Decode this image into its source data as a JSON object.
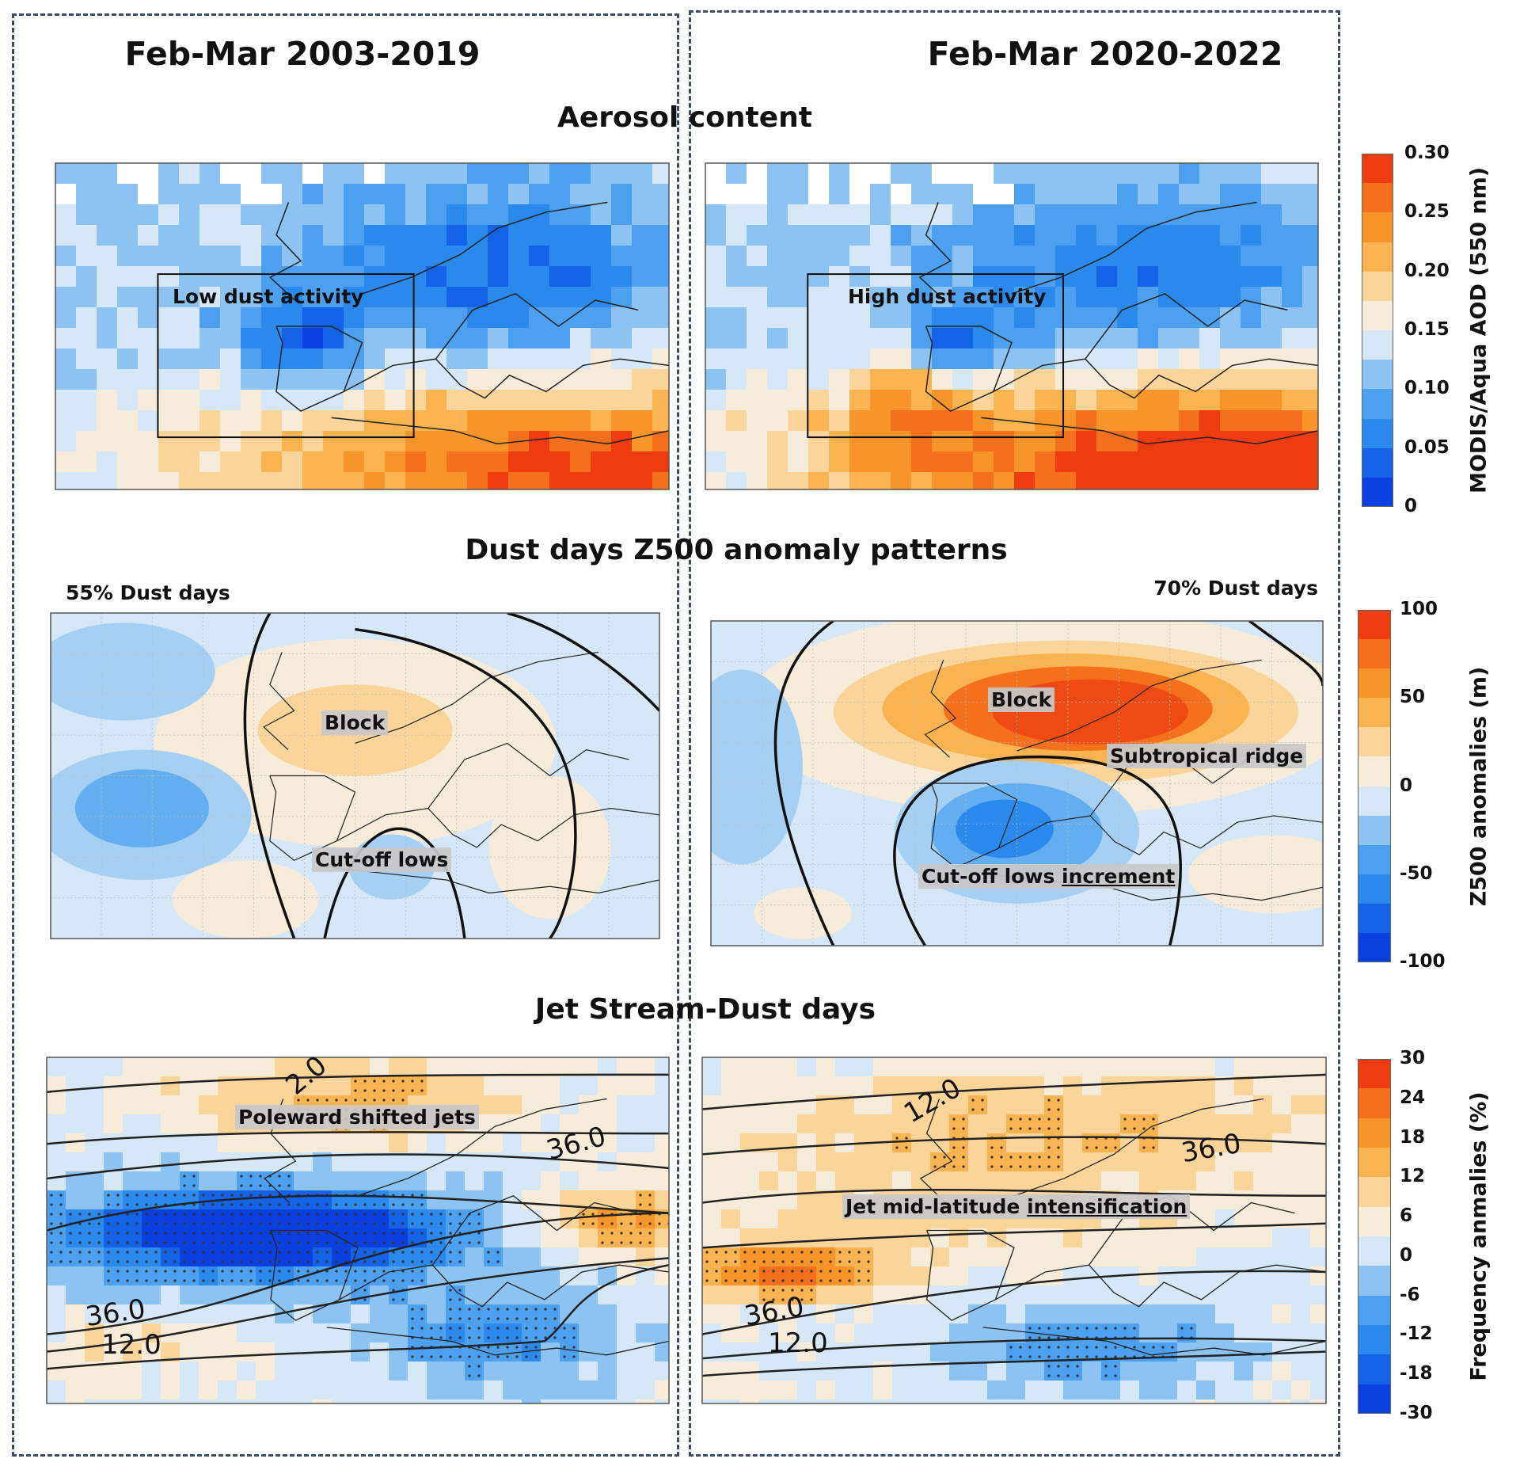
{
  "columns": {
    "left_title": "Feb-Mar 2003-2019",
    "right_title": "Feb-Mar 2020-2022"
  },
  "rows": {
    "aerosol": {
      "title": "Aerosol content",
      "left_label": "Low dust activity",
      "right_label": "High dust activity",
      "colorbar": {
        "title": "MODIS/Aqua AOD (550 nm)",
        "ticks": [
          "0.30",
          "0.25",
          "0.20",
          "0.15",
          "0.10",
          "0.05",
          "0"
        ],
        "colors": [
          "#ee3b10",
          "#f4701c",
          "#f7952a",
          "#f9b350",
          "#fbd49a",
          "#f7ebd9",
          "#d6e8f7",
          "#8cc3f2",
          "#4da0f0",
          "#2b88ec",
          "#1463e6",
          "#0a3fe0"
        ]
      }
    },
    "z500": {
      "title": "Dust days Z500 anomaly patterns",
      "left_pct": "55% Dust days",
      "right_pct": "70% Dust days",
      "left_labels": {
        "block": "Block",
        "cutoff": "Cut-off lows"
      },
      "right_labels": {
        "block": "Block",
        "ridge": "Subtropical ridge",
        "cutoff_a": "Cut-off lows ",
        "cutoff_b": "increment"
      },
      "colorbar": {
        "title": "Z500 anomalies (m)",
        "ticks": [
          "100",
          "50",
          "0",
          "-50",
          "-100"
        ],
        "colors": [
          "#ee3b10",
          "#f4701c",
          "#f7952a",
          "#f9b350",
          "#fbd49a",
          "#f7ebd9",
          "#d6e8f7",
          "#8cc3f2",
          "#4da0f0",
          "#2b88ec",
          "#1463e6",
          "#0a3fe0"
        ]
      }
    },
    "jet": {
      "title": "Jet Stream-Dust days",
      "left_label": "Poleward shifted jets",
      "right_label_a": "Jet mid-latitude ",
      "right_label_b": "intensification",
      "contour_labels": {
        "left": [
          "2.0",
          "36.0",
          "36.0",
          "12.0"
        ],
        "right": [
          "12.0",
          "36.0",
          "36.0",
          "12.0"
        ]
      },
      "colorbar": {
        "title": "Frequency anmalies (%)",
        "ticks": [
          "30",
          "24",
          "18",
          "12",
          "6",
          "0",
          "-6",
          "-12",
          "-18",
          "-30"
        ],
        "colors": [
          "#ee3b10",
          "#f4701c",
          "#f7952a",
          "#f9b350",
          "#fbd49a",
          "#f7ebd9",
          "#d6e8f7",
          "#8cc3f2",
          "#4da0f0",
          "#2b88ec",
          "#1463e6",
          "#0a3fe0"
        ]
      }
    }
  }
}
